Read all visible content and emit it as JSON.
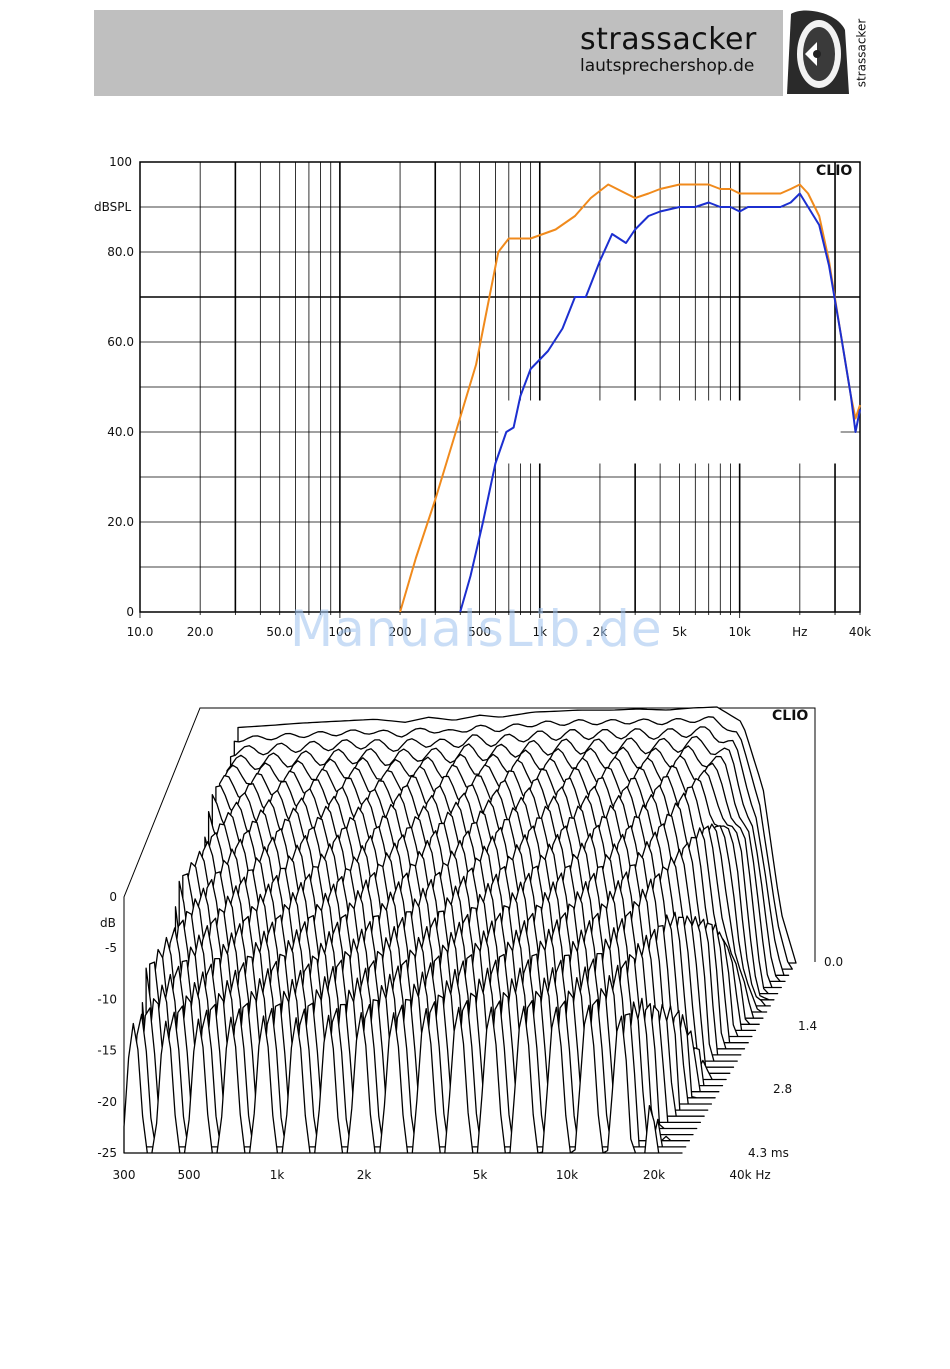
{
  "header": {
    "brand_name": "strassacker",
    "brand_url": "lautsprechershop.de",
    "logo_vertical_text": "strassacker",
    "logo_icon": "speaker-logo-icon"
  },
  "watermark": "ManualsLib.de",
  "chart_data": [
    {
      "type": "line",
      "badge": "CLIO",
      "ylabel": "dBSPL",
      "xscale": "log",
      "xlim": [
        10,
        40000
      ],
      "ylim": [
        0,
        100
      ],
      "grid": true,
      "y_ticks": [
        {
          "value": 0,
          "label": "0"
        },
        {
          "value": 20,
          "label": "20.0"
        },
        {
          "value": 40,
          "label": "40.0"
        },
        {
          "value": 60,
          "label": "60.0"
        },
        {
          "value": 80,
          "label": "80.0"
        },
        {
          "value": 100,
          "label": "100"
        }
      ],
      "x_ticks": [
        {
          "value": 10,
          "label": "10.0"
        },
        {
          "value": 20,
          "label": "20.0"
        },
        {
          "value": 50,
          "label": "50.0"
        },
        {
          "value": 100,
          "label": "100"
        },
        {
          "value": 200,
          "label": "200"
        },
        {
          "value": 500,
          "label": "500"
        },
        {
          "value": 1000,
          "label": "1k"
        },
        {
          "value": 2000,
          "label": "2k"
        },
        {
          "value": 5000,
          "label": "5k"
        },
        {
          "value": 10000,
          "label": "10k"
        },
        {
          "value": 20000,
          "label": "Hz"
        },
        {
          "value": 40000,
          "label": "40k"
        }
      ],
      "series": [
        {
          "color": "#f08a1c",
          "x": [
            200,
            240,
            300,
            380,
            480,
            560,
            620,
            700,
            900,
            1200,
            1500,
            1800,
            2200,
            2700,
            3000,
            3500,
            4000,
            5000,
            6000,
            7000,
            8000,
            9000,
            10000,
            12000,
            14000,
            16000,
            18000,
            20000,
            22000,
            25000,
            28000,
            32000,
            36000,
            38000,
            40000
          ],
          "y": [
            0,
            12,
            25,
            40,
            55,
            70,
            80,
            83,
            83,
            85,
            88,
            92,
            95,
            93,
            92,
            93,
            94,
            95,
            95,
            95,
            94,
            94,
            93,
            93,
            93,
            93,
            94,
            95,
            93,
            88,
            78,
            62,
            48,
            43,
            46
          ]
        },
        {
          "color": "#1c2fd0",
          "x": [
            400,
            450,
            520,
            600,
            680,
            740,
            800,
            900,
            1100,
            1300,
            1500,
            1700,
            2000,
            2300,
            2700,
            3000,
            3500,
            4000,
            5000,
            6000,
            7000,
            8000,
            9000,
            10000,
            11000,
            13000,
            16000,
            18000,
            20000,
            22000,
            25000,
            28000,
            32000,
            36000,
            38000,
            40000
          ],
          "y": [
            0,
            8,
            20,
            33,
            40,
            41,
            48,
            54,
            58,
            63,
            70,
            70,
            78,
            84,
            82,
            85,
            88,
            89,
            90,
            90,
            91,
            90,
            90,
            89,
            90,
            90,
            90,
            91,
            93,
            90,
            86,
            77,
            62,
            48,
            40,
            45
          ]
        }
      ]
    },
    {
      "type": "waterfall",
      "badge": "CLIO",
      "ylabel": "dB",
      "zlabel": "ms",
      "xscale": "log",
      "xlim": [
        300,
        40000
      ],
      "ylim": [
        -25,
        0
      ],
      "zlim": [
        0,
        4.3
      ],
      "y_ticks": [
        {
          "value": 0,
          "label": "0"
        },
        {
          "value": -5,
          "label": "-5"
        },
        {
          "value": -10,
          "label": "-10"
        },
        {
          "value": -15,
          "label": "-15"
        },
        {
          "value": -20,
          "label": "-20"
        },
        {
          "value": -25,
          "label": "-25"
        }
      ],
      "x_ticks": [
        {
          "value": 300,
          "label": "300"
        },
        {
          "value": 500,
          "label": "500"
        },
        {
          "value": 1000,
          "label": "1k"
        },
        {
          "value": 2000,
          "label": "2k"
        },
        {
          "value": 5000,
          "label": "5k"
        },
        {
          "value": 10000,
          "label": "10k"
        },
        {
          "value": 20000,
          "label": "20k"
        },
        {
          "value": 40000,
          "label": "40k Hz"
        }
      ],
      "z_ticks": [
        {
          "value": 0,
          "label": "0.0"
        },
        {
          "value": 1.4,
          "label": "1.4"
        },
        {
          "value": 2.8,
          "label": "2.8"
        },
        {
          "value": 4.3,
          "label": "4.3  ms"
        }
      ],
      "slice_count": 32,
      "base_response": {
        "x": [
          300,
          400,
          500,
          700,
          1000,
          1300,
          1600,
          2000,
          2500,
          3000,
          4000,
          5000,
          6000,
          8000,
          10000,
          13000,
          16000,
          20000,
          25000,
          30000,
          35000,
          40000
        ],
        "y": [
          -2,
          -1.8,
          -1.6,
          -1.4,
          -1.2,
          -1.5,
          -1.0,
          -1.3,
          -0.8,
          -1.0,
          -0.5,
          -0.4,
          -0.3,
          -0.3,
          -0.2,
          -0.3,
          -0.1,
          0,
          -1.5,
          -8,
          -20,
          -25
        ]
      }
    }
  ]
}
